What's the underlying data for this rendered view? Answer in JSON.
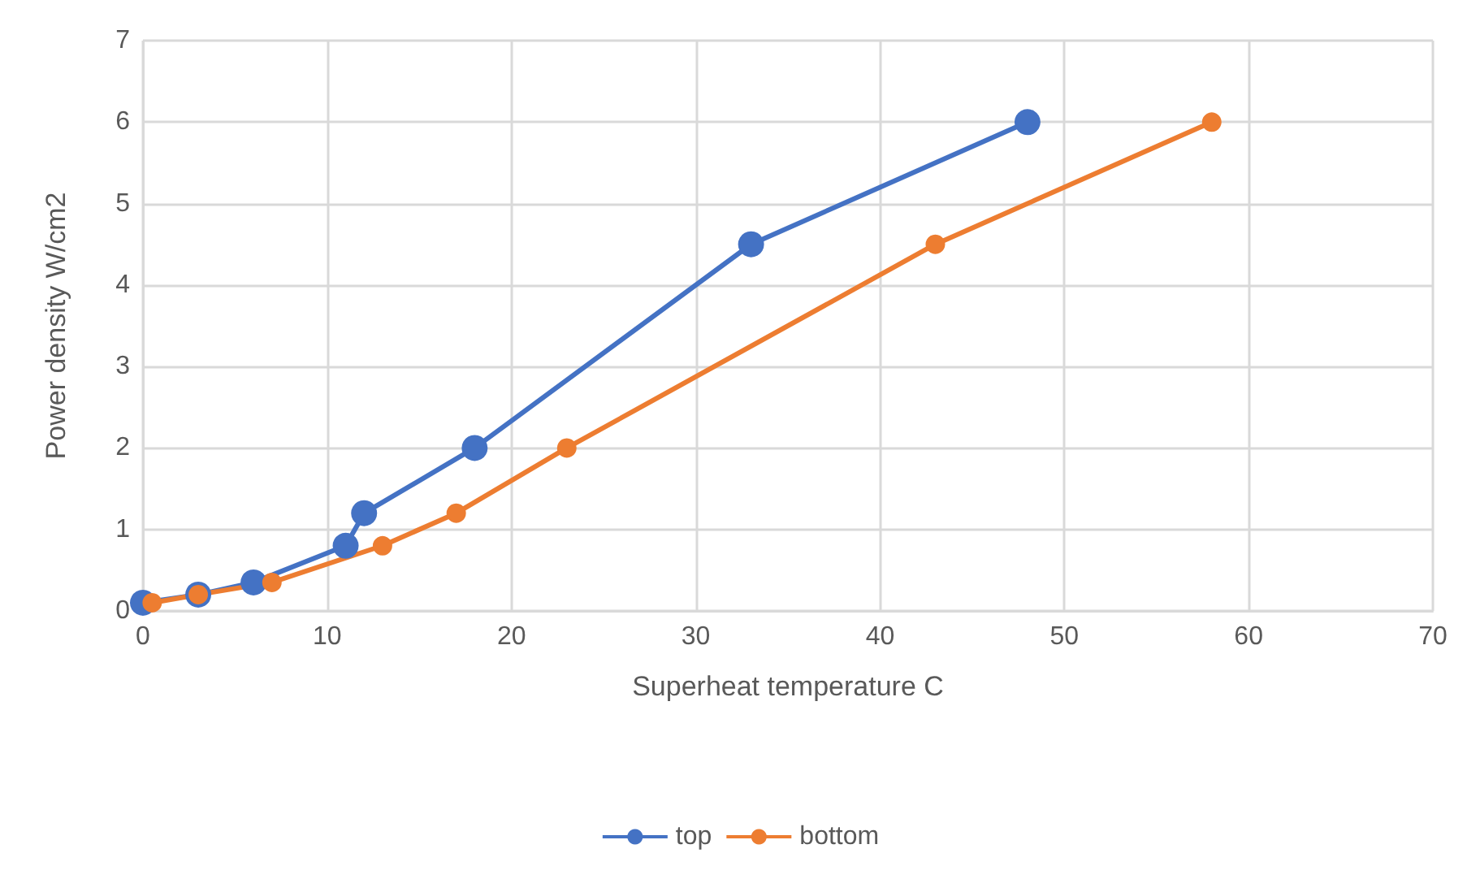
{
  "chart_data": {
    "type": "line",
    "xlabel": "Superheat temperature C",
    "ylabel": "Power density W/cm2",
    "xlim": [
      0,
      70
    ],
    "xticks": [
      0,
      10,
      20,
      30,
      40,
      50,
      60,
      70
    ],
    "ylim": [
      0,
      7
    ],
    "yticks": [
      0,
      1,
      2,
      3,
      4,
      5,
      6,
      7
    ],
    "grid": true,
    "legend": "bottom",
    "marker": "circle",
    "line_style": "solid",
    "series": [
      {
        "name": "top",
        "color": "#4472c4",
        "x": [
          0,
          3,
          6,
          11,
          12,
          18,
          33,
          48
        ],
        "values": [
          0.1,
          0.2,
          0.35,
          0.8,
          1.2,
          2,
          4.5,
          6
        ]
      },
      {
        "name": "bottom",
        "color": "#ed7d31",
        "x": [
          0.5,
          3,
          7,
          13,
          17,
          23,
          43,
          58
        ],
        "values": [
          0.1,
          0.2,
          0.35,
          0.8,
          1.2,
          2,
          4.5,
          6
        ]
      }
    ]
  }
}
